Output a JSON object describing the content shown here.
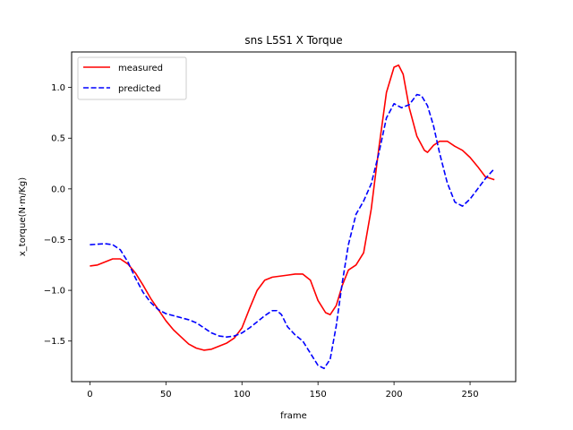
{
  "chart_data": {
    "type": "line",
    "title": "sns L5S1 X Torque",
    "xlabel": "frame",
    "ylabel": "x_torque(N·m/Kg)",
    "xlim": [
      -12,
      280
    ],
    "ylim": [
      -1.9,
      1.35
    ],
    "xticks": [
      0,
      50,
      100,
      150,
      200,
      250
    ],
    "yticks": [
      -1.5,
      -1.0,
      -0.5,
      0.0,
      0.5,
      1.0
    ],
    "xtick_labels": [
      "0",
      "50",
      "100",
      "150",
      "200",
      "250"
    ],
    "ytick_labels": [
      "−1.5",
      "−1.0",
      "−0.5",
      "0.0",
      "0.5",
      "1.0"
    ],
    "grid": false,
    "legend_position": "top-left",
    "series": [
      {
        "name": "measured",
        "color": "#ff0000",
        "style": "solid",
        "points": [
          [
            0,
            -0.76
          ],
          [
            5,
            -0.75
          ],
          [
            10,
            -0.72
          ],
          [
            15,
            -0.69
          ],
          [
            20,
            -0.69
          ],
          [
            25,
            -0.74
          ],
          [
            30,
            -0.83
          ],
          [
            35,
            -0.95
          ],
          [
            40,
            -1.08
          ],
          [
            45,
            -1.19
          ],
          [
            50,
            -1.3
          ],
          [
            55,
            -1.39
          ],
          [
            60,
            -1.46
          ],
          [
            65,
            -1.53
          ],
          [
            70,
            -1.57
          ],
          [
            75,
            -1.59
          ],
          [
            80,
            -1.58
          ],
          [
            85,
            -1.55
          ],
          [
            90,
            -1.52
          ],
          [
            95,
            -1.47
          ],
          [
            100,
            -1.37
          ],
          [
            105,
            -1.18
          ],
          [
            110,
            -1.0
          ],
          [
            115,
            -0.9
          ],
          [
            120,
            -0.87
          ],
          [
            125,
            -0.86
          ],
          [
            130,
            -0.85
          ],
          [
            135,
            -0.84
          ],
          [
            140,
            -0.84
          ],
          [
            145,
            -0.9
          ],
          [
            150,
            -1.1
          ],
          [
            155,
            -1.22
          ],
          [
            158,
            -1.24
          ],
          [
            162,
            -1.15
          ],
          [
            166,
            -0.95
          ],
          [
            170,
            -0.8
          ],
          [
            175,
            -0.75
          ],
          [
            180,
            -0.63
          ],
          [
            185,
            -0.2
          ],
          [
            190,
            0.4
          ],
          [
            195,
            0.95
          ],
          [
            200,
            1.2
          ],
          [
            203,
            1.22
          ],
          [
            206,
            1.13
          ],
          [
            210,
            0.8
          ],
          [
            215,
            0.52
          ],
          [
            220,
            0.38
          ],
          [
            222,
            0.36
          ],
          [
            226,
            0.43
          ],
          [
            230,
            0.47
          ],
          [
            235,
            0.47
          ],
          [
            240,
            0.42
          ],
          [
            245,
            0.38
          ],
          [
            250,
            0.31
          ],
          [
            255,
            0.22
          ],
          [
            260,
            0.12
          ],
          [
            266,
            0.09
          ]
        ]
      },
      {
        "name": "predicted",
        "color": "#0000ff",
        "style": "dashed",
        "points": [
          [
            0,
            -0.55
          ],
          [
            5,
            -0.545
          ],
          [
            10,
            -0.54
          ],
          [
            15,
            -0.55
          ],
          [
            20,
            -0.6
          ],
          [
            25,
            -0.72
          ],
          [
            30,
            -0.88
          ],
          [
            35,
            -1.02
          ],
          [
            40,
            -1.12
          ],
          [
            45,
            -1.19
          ],
          [
            50,
            -1.23
          ],
          [
            55,
            -1.25
          ],
          [
            60,
            -1.27
          ],
          [
            65,
            -1.29
          ],
          [
            70,
            -1.32
          ],
          [
            75,
            -1.37
          ],
          [
            80,
            -1.42
          ],
          [
            85,
            -1.45
          ],
          [
            90,
            -1.46
          ],
          [
            95,
            -1.45
          ],
          [
            100,
            -1.42
          ],
          [
            105,
            -1.37
          ],
          [
            110,
            -1.31
          ],
          [
            115,
            -1.25
          ],
          [
            120,
            -1.2
          ],
          [
            123,
            -1.2
          ],
          [
            126,
            -1.24
          ],
          [
            130,
            -1.36
          ],
          [
            135,
            -1.44
          ],
          [
            140,
            -1.5
          ],
          [
            145,
            -1.62
          ],
          [
            150,
            -1.74
          ],
          [
            154,
            -1.77
          ],
          [
            158,
            -1.68
          ],
          [
            162,
            -1.35
          ],
          [
            166,
            -0.92
          ],
          [
            170,
            -0.55
          ],
          [
            175,
            -0.25
          ],
          [
            180,
            -0.12
          ],
          [
            185,
            0.05
          ],
          [
            190,
            0.35
          ],
          [
            195,
            0.7
          ],
          [
            200,
            0.84
          ],
          [
            205,
            0.8
          ],
          [
            210,
            0.83
          ],
          [
            215,
            0.93
          ],
          [
            218,
            0.92
          ],
          [
            222,
            0.82
          ],
          [
            226,
            0.62
          ],
          [
            230,
            0.35
          ],
          [
            235,
            0.06
          ],
          [
            240,
            -0.13
          ],
          [
            245,
            -0.17
          ],
          [
            250,
            -0.1
          ],
          [
            255,
            0.0
          ],
          [
            260,
            0.1
          ],
          [
            266,
            0.2
          ]
        ]
      }
    ]
  }
}
